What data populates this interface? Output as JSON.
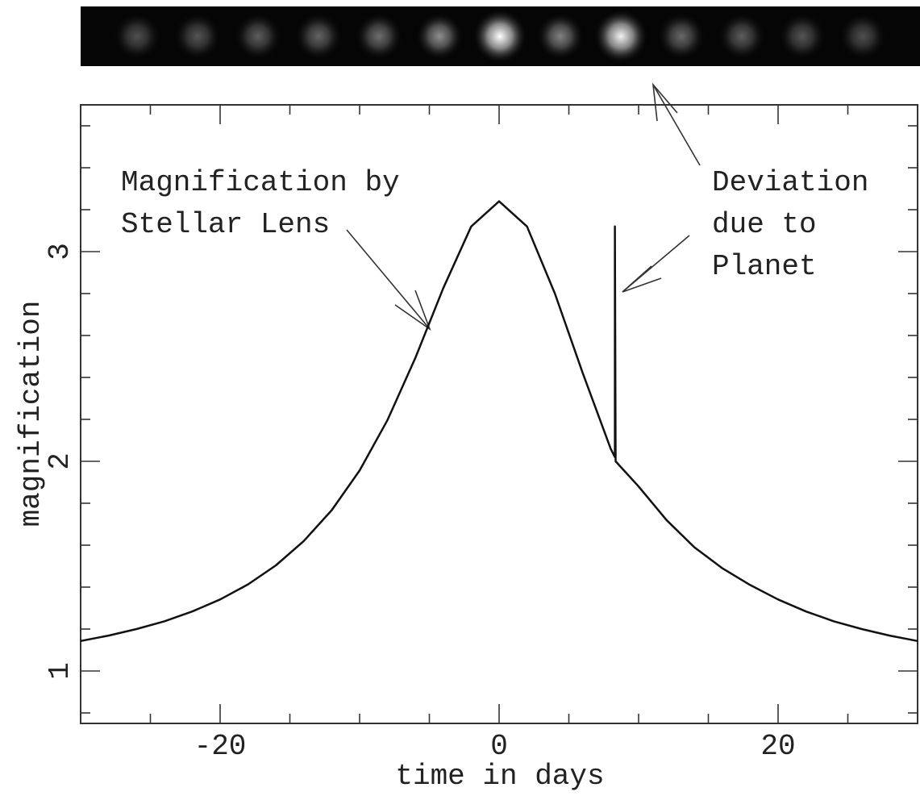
{
  "chart_data": {
    "type": "line",
    "xlabel": "time in days",
    "ylabel": "magnification",
    "x": [
      -30,
      -28,
      -26,
      -24,
      -22,
      -20,
      -18,
      -16,
      -14,
      -12,
      -10,
      -8,
      -6,
      -4,
      -2,
      0,
      2,
      4,
      6,
      8,
      8.3,
      8.3,
      8.35,
      10,
      12,
      14,
      16,
      18,
      20,
      22,
      24,
      26,
      28,
      30
    ],
    "values": [
      1.143,
      1.169,
      1.2,
      1.237,
      1.284,
      1.341,
      1.413,
      1.504,
      1.62,
      1.767,
      1.956,
      2.197,
      2.494,
      2.826,
      3.12,
      3.24,
      3.12,
      2.8,
      2.42,
      2.06,
      2.02,
      3.12,
      2.0,
      1.88,
      1.72,
      1.59,
      1.49,
      1.41,
      1.341,
      1.284,
      1.237,
      1.2,
      1.169,
      1.143
    ],
    "color": "#111111",
    "xlim": [
      -30,
      30
    ],
    "ylim": [
      0.75,
      3.7
    ],
    "xticks": [
      -20,
      0,
      20
    ],
    "yticks": [
      1,
      2,
      3
    ],
    "xminorticks": [
      -30,
      -25,
      -15,
      -10,
      -5,
      5,
      10,
      15,
      25,
      30
    ],
    "yminorticks": [
      0.8,
      1.2,
      1.4,
      1.6,
      1.8,
      2.2,
      2.4,
      2.6,
      2.8,
      3.2,
      3.4,
      3.6
    ],
    "annotations": [
      [
        "Magnification by",
        "Stellar Lens"
      ],
      [
        "Deviation",
        "due to",
        "Planet"
      ]
    ]
  }
}
